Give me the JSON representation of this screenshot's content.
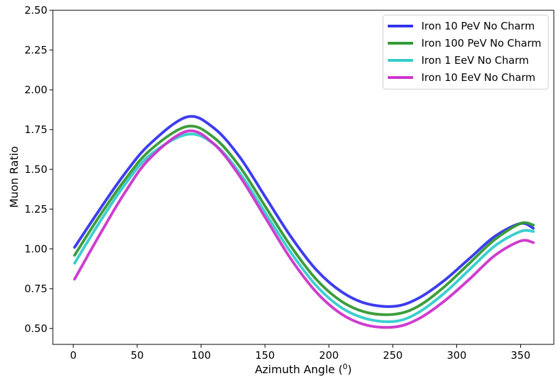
{
  "chart_data": {
    "type": "line",
    "title": "",
    "xlabel": "Azimuth Angle (",
    "xlabel_superscript": "0",
    "xlabel_suffix": ")",
    "ylabel": "Muon Ratio",
    "xlim": [
      -16,
      376
    ],
    "ylim": [
      0.4,
      2.5
    ],
    "xticks": [
      0,
      50,
      100,
      150,
      200,
      250,
      300,
      350
    ],
    "xtick_labels": [
      "0",
      "50",
      "100",
      "150",
      "200",
      "250",
      "300",
      "350"
    ],
    "yticks": [
      0.5,
      0.75,
      1.0,
      1.25,
      1.5,
      1.75,
      2.0,
      2.25,
      2.5
    ],
    "ytick_labels": [
      "0.50",
      "0.75",
      "1.00",
      "1.25",
      "1.50",
      "1.75",
      "2.00",
      "2.25",
      "2.50"
    ],
    "grid": false,
    "legend_position": "top-right",
    "x": [
      1,
      20,
      40,
      60,
      89,
      110,
      130,
      150,
      170,
      190,
      210,
      230,
      252,
      270,
      290,
      310,
      330,
      350,
      360
    ],
    "series": [
      {
        "name": "Iron 10 PeV No Charm",
        "color": "#3333ee",
        "values": [
          1.01,
          1.24,
          1.47,
          1.66,
          1.83,
          1.76,
          1.58,
          1.33,
          1.08,
          0.87,
          0.73,
          0.655,
          0.64,
          0.69,
          0.8,
          0.94,
          1.08,
          1.16,
          1.13
        ]
      },
      {
        "name": "Iron 100 PeV No Charm",
        "color": "#339933",
        "values": [
          0.96,
          1.2,
          1.43,
          1.62,
          1.77,
          1.7,
          1.52,
          1.27,
          1.02,
          0.81,
          0.67,
          0.6,
          0.59,
          0.64,
          0.76,
          0.91,
          1.06,
          1.16,
          1.15
        ]
      },
      {
        "name": "Iron 1 EeV No Charm",
        "color": "#33cccc",
        "values": [
          0.91,
          1.16,
          1.4,
          1.59,
          1.72,
          1.66,
          1.48,
          1.23,
          0.98,
          0.77,
          0.63,
          0.56,
          0.545,
          0.6,
          0.72,
          0.87,
          1.02,
          1.11,
          1.11
        ]
      },
      {
        "name": "Iron 10 EeV No Charm",
        "color": "#cc33cc",
        "values": [
          0.81,
          1.08,
          1.35,
          1.57,
          1.74,
          1.66,
          1.46,
          1.2,
          0.94,
          0.73,
          0.59,
          0.52,
          0.51,
          0.56,
          0.67,
          0.81,
          0.96,
          1.05,
          1.04
        ]
      }
    ]
  }
}
